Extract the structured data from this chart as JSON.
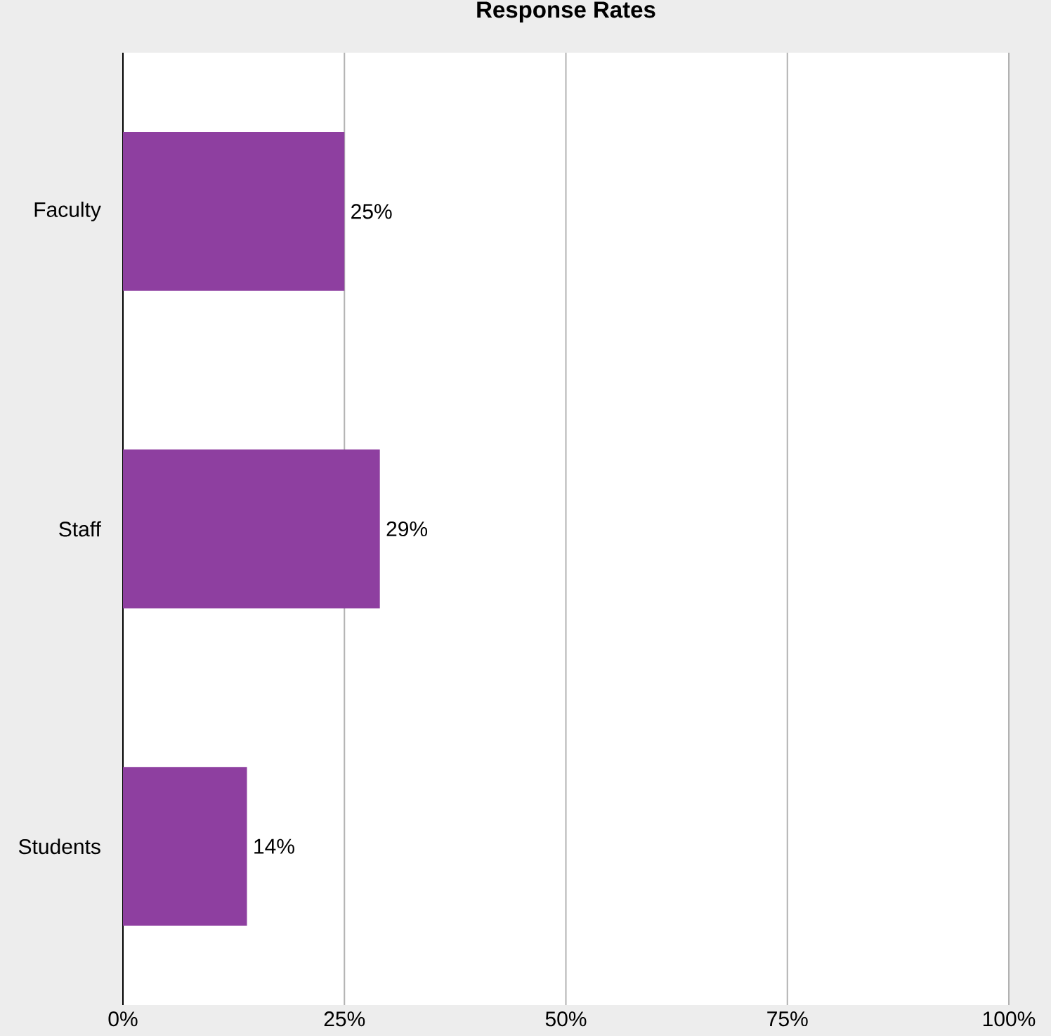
{
  "chart_data": {
    "type": "bar",
    "orientation": "horizontal",
    "title": "Response Rates",
    "categories": [
      "Faculty",
      "Staff",
      "Students"
    ],
    "values": [
      25,
      29,
      14
    ],
    "value_labels": [
      "25%",
      "29%",
      "14%"
    ],
    "color": "#8e3fa0",
    "xlim": [
      0,
      100
    ],
    "xticks": [
      {
        "value": 0,
        "label": "0%"
      },
      {
        "value": 25,
        "label": "25%"
      },
      {
        "value": 50,
        "label": "50%"
      },
      {
        "value": 75,
        "label": "75%"
      },
      {
        "value": 100,
        "label": "100%"
      }
    ],
    "grid": "x"
  }
}
